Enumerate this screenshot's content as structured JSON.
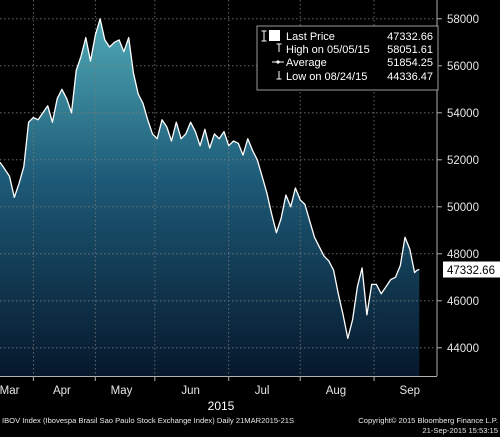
{
  "chart_data": {
    "type": "area",
    "title": "",
    "xlabel": "2015",
    "ylabel": "",
    "ylim": [
      42800,
      58800
    ],
    "xlim": [
      0,
      183
    ],
    "y_ticks": [
      44000,
      46000,
      48000,
      50000,
      52000,
      54000,
      56000,
      58000
    ],
    "y_tick_labels": [
      "44000",
      "46000",
      "48000",
      "50000",
      "52000",
      "54000",
      "56000",
      "58000"
    ],
    "x_ticks": [
      {
        "label": "Mar",
        "x": 4
      },
      {
        "label": "Apr",
        "x": 26
      },
      {
        "label": "May",
        "x": 51
      },
      {
        "label": "Jun",
        "x": 80
      },
      {
        "label": "Jul",
        "x": 110
      },
      {
        "label": "Aug",
        "x": 141
      },
      {
        "label": "Sep",
        "x": 172
      }
    ],
    "x_separators": [
      14,
      40,
      65,
      96,
      126,
      157
    ],
    "year_label": "2015",
    "series": [
      {
        "name": "Last Price",
        "x": [
          0,
          2,
          4,
          6,
          8,
          10,
          12,
          14,
          16,
          18,
          20,
          22,
          24,
          26,
          28,
          30,
          32,
          34,
          36,
          38,
          40,
          42,
          44,
          46,
          48,
          50,
          52,
          54,
          56,
          58,
          60,
          62,
          64,
          66,
          68,
          70,
          72,
          74,
          76,
          78,
          80,
          82,
          84,
          86,
          88,
          90,
          92,
          94,
          96,
          98,
          100,
          102,
          104,
          106,
          108,
          110,
          112,
          114,
          116,
          118,
          120,
          122,
          124,
          126,
          128,
          130,
          132,
          134,
          136,
          138,
          140,
          142,
          144,
          146,
          148,
          150,
          152,
          154,
          156,
          158,
          160,
          162,
          164,
          166,
          168,
          170,
          172,
          174,
          175,
          176
        ],
        "values": [
          51900,
          51600,
          51300,
          50400,
          51000,
          51700,
          53600,
          53800,
          53700,
          54000,
          54300,
          53600,
          54600,
          55000,
          54600,
          54000,
          55800,
          56400,
          57200,
          56200,
          57300,
          58000,
          57100,
          56800,
          57000,
          57100,
          56600,
          57200,
          55700,
          54800,
          54400,
          53700,
          53100,
          52900,
          53700,
          53400,
          52800,
          53600,
          52900,
          53100,
          53600,
          53200,
          52600,
          53300,
          52500,
          53100,
          52900,
          53200,
          52600,
          52800,
          52700,
          52200,
          52900,
          52400,
          52000,
          51300,
          50600,
          49700,
          48900,
          49500,
          50500,
          50000,
          50800,
          50300,
          50100,
          49400,
          48700,
          48300,
          47900,
          47700,
          47300,
          46300,
          45400,
          44400,
          45200,
          46600,
          47400,
          45400,
          46700,
          46700,
          46300,
          46600,
          46900,
          47000,
          47500,
          48700,
          48200,
          47200,
          47300,
          47332.66
        ]
      }
    ],
    "legend": {
      "placement": "top-right",
      "items": [
        {
          "label": "Last Price",
          "value": "47332.66",
          "icon": "filled-square-icon"
        },
        {
          "label": "High on 05/05/15",
          "value": "58051.61",
          "icon": "high-marker-icon"
        },
        {
          "label": "Average",
          "value": "51854.25",
          "icon": "average-marker-icon"
        },
        {
          "label": "Low on 08/24/15",
          "value": "44336.47",
          "icon": "low-marker-icon"
        }
      ]
    },
    "last_price_label": "47332.66",
    "colors": {
      "background": "#000000",
      "area_top": "#4fa9b5",
      "area_bottom": "#06182c",
      "line": "#ffffff",
      "grid": "#7a7a7a"
    }
  },
  "footer": {
    "left": "IBOV Index (Ibovespa Brasil Sao Paulo Stock Exchange Index)  Daily 21MAR2015-21S",
    "right_line1": "Copyright© 2015 Bloomberg Finance L.P.",
    "right_line2": "21-Sep-2015 15:53:15"
  }
}
